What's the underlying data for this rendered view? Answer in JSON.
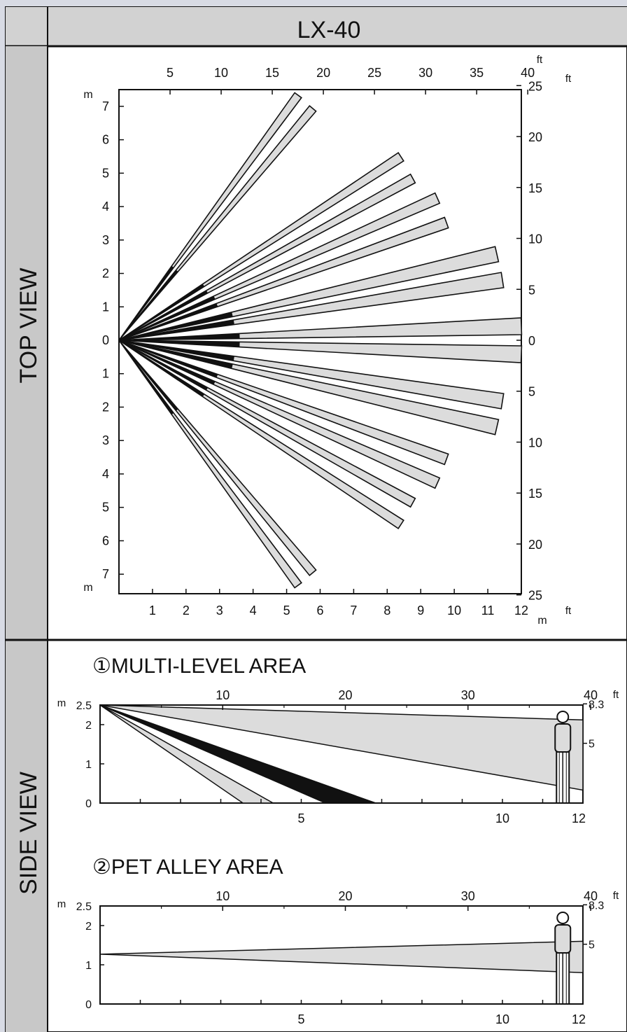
{
  "title": "LX-40",
  "top_view": {
    "label": "TOP VIEW",
    "x_m_ticks": [
      "1",
      "2",
      "3",
      "4",
      "5",
      "6",
      "7",
      "8",
      "9",
      "10",
      "11",
      "12"
    ],
    "x_m_unit": "m",
    "x_ft_ticks": [
      "5",
      "10",
      "15",
      "20",
      "25",
      "30",
      "35",
      "40"
    ],
    "x_ft_unit": "ft",
    "y_m_top_ticks": [
      "7",
      "6",
      "5",
      "4",
      "3",
      "2",
      "1",
      "0"
    ],
    "y_m_bottom_ticks": [
      "1",
      "2",
      "3",
      "4",
      "5",
      "6",
      "7"
    ],
    "y_m_unit": "m",
    "y_ft_top_ticks": [
      "25",
      "20",
      "15",
      "10",
      "5",
      "0"
    ],
    "y_ft_bottom_ticks": [
      "5",
      "10",
      "15",
      "20",
      "25"
    ],
    "y_ft_unit": "ft"
  },
  "side_view": {
    "label": "SIDE VIEW",
    "multi_level": {
      "title": "①MULTI-LEVEL AREA",
      "x_m_ticks": [
        "5",
        "10",
        "12"
      ],
      "x_ft_ticks": [
        "10",
        "20",
        "30",
        "40"
      ],
      "y_m_ticks": [
        "2.5",
        "2",
        "1",
        "0"
      ],
      "y_ft_ticks": [
        "8.3",
        "5"
      ],
      "m_unit": "m",
      "ft_unit": "ft"
    },
    "pet_alley": {
      "title": "②PET ALLEY AREA",
      "x_m_ticks": [
        "5",
        "10",
        "12"
      ],
      "x_ft_ticks": [
        "10",
        "20",
        "30",
        "40"
      ],
      "y_m_ticks": [
        "2.5",
        "2",
        "1",
        "0"
      ],
      "y_ft_ticks": [
        "8.3",
        "5"
      ],
      "m_unit": "m",
      "ft_unit": "ft"
    }
  },
  "colors": {
    "panel_bg": "#ffffff",
    "header_bg": "#d2d2d2",
    "label_bg": "#c8c8c8",
    "zone_fill": "#dcdcdc",
    "ink": "#111111"
  }
}
